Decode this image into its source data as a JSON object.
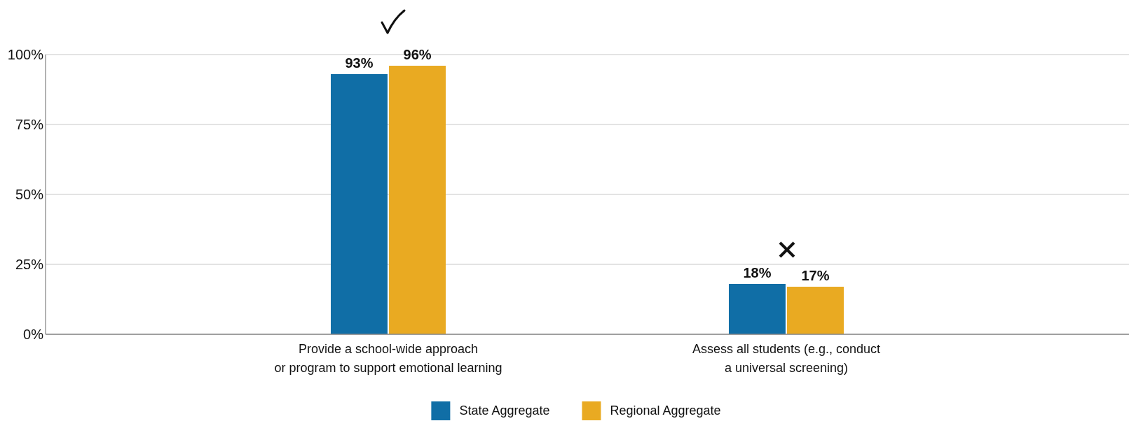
{
  "chart_data": {
    "type": "bar",
    "categories": [
      "Provide a school-wide approach\nor program to support emotional learning",
      "Assess all students (e.g., conduct\na universal screening)"
    ],
    "series": [
      {
        "name": "State Aggregate",
        "color": "#106ea6",
        "values": [
          93,
          18
        ],
        "value_labels": [
          "93%",
          "18%"
        ]
      },
      {
        "name": "Regional Aggregate",
        "color": "#e9aa22",
        "values": [
          96,
          17
        ],
        "value_labels": [
          "96%",
          "17%"
        ]
      }
    ],
    "ylim": [
      0,
      100
    ],
    "yticks": [
      {
        "value": 0,
        "label": "0%"
      },
      {
        "value": 25,
        "label": "25%"
      },
      {
        "value": 50,
        "label": "50%"
      },
      {
        "value": 75,
        "label": "75%"
      },
      {
        "value": 100,
        "label": "100%"
      }
    ],
    "grid": "y",
    "legend": "bottom"
  }
}
